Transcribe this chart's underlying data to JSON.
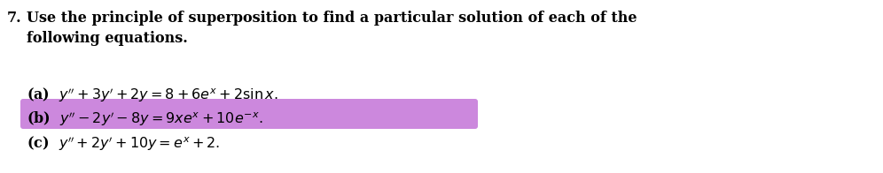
{
  "background_color": "#ffffff",
  "text_color": "#000000",
  "highlight_color": "#cc88dd",
  "fig_width": 9.96,
  "fig_height": 1.96,
  "dpi": 100,
  "title_number": "7.",
  "title_line1": "Use the principle of superposition to find a particular solution of each of the",
  "title_line2": "following equations.",
  "eq_a": "(a)  $y^{\\prime\\prime} + 3y^{\\prime} + 2y \\ = \\ 8 + 6e^x + 2\\sin x.$",
  "eq_b": "(b)  $y^{\\prime\\prime} - 2y^{\\prime} - 8y \\ = \\ 9xe^x + 10e^{-x}.$",
  "eq_c": "(c)  $y^{\\prime\\prime} + 2y^{\\prime} + 10y \\ = \\ e^x + 2.$",
  "title_fs": 11.5,
  "eq_fs": 11.5
}
